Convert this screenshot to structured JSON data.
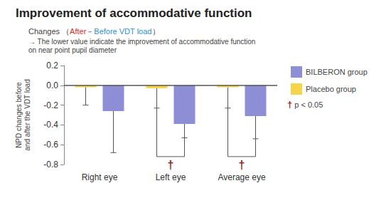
{
  "chart_data": {
    "type": "bar",
    "title": "Improvement of accommodative function",
    "subtitle": [
      {
        "text": "Changes （"
      },
      {
        "text": "After",
        "color": "#d0312d"
      },
      {
        "text": "－"
      },
      {
        "text": "Before VDT load",
        "color": "#2f8fc9"
      },
      {
        "text": "）"
      }
    ],
    "note": "→ The lower value indicate the improvement of accommodative function\non near point pupil diameter",
    "ylabel": "NPD changes before\nand after the VDT load",
    "categories": [
      "Right eye",
      "Left eye",
      "Average eye"
    ],
    "series": [
      {
        "name": "Placebo group",
        "color": "#f6d54b",
        "values": [
          -0.02,
          -0.03,
          -0.02
        ],
        "errors": [
          0.18,
          0.2,
          0.21
        ]
      },
      {
        "name": "BILBERON group",
        "color": "#8e8ed6",
        "values": [
          -0.26,
          -0.39,
          -0.31
        ],
        "errors": [
          0.42,
          0.14,
          0.23
        ]
      }
    ],
    "significance": [
      {
        "category": "Left eye",
        "label": "†",
        "y": -0.72
      },
      {
        "category": "Average eye",
        "label": "†",
        "y": -0.72
      }
    ],
    "significance_note": "† p < 0.05",
    "ylim": [
      -0.8,
      0.2
    ],
    "yticks": [
      -0.8,
      -0.6,
      -0.4,
      -0.2,
      {
        "value": 0,
        "label": "0.0"
      },
      0.2
    ],
    "grid": false
  }
}
